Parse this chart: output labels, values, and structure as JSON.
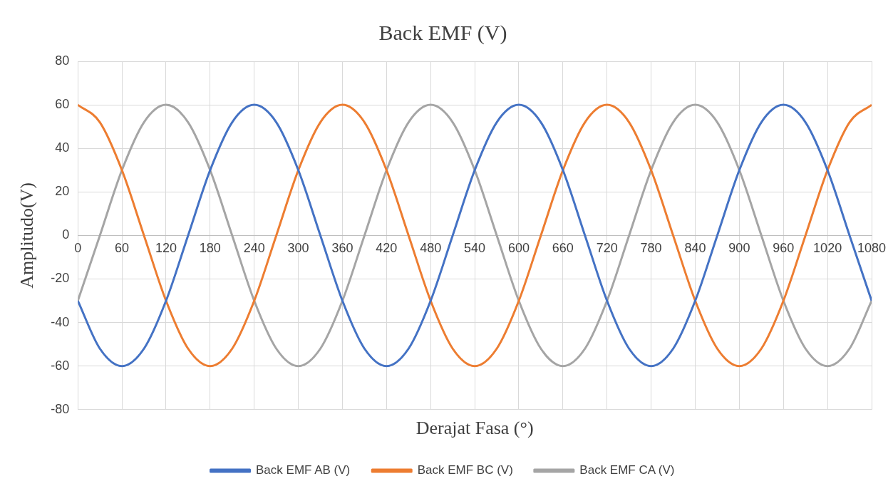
{
  "chart_data": {
    "type": "line",
    "title": "Back EMF (V)",
    "xlabel": "Derajat Fasa (°)",
    "ylabel": "Amplitudo(V)",
    "x": [
      0,
      30,
      60,
      90,
      120,
      150,
      180,
      210,
      240,
      270,
      300,
      330,
      360,
      390,
      420,
      450,
      480,
      510,
      540,
      570,
      600,
      630,
      660,
      690,
      720,
      750,
      780,
      810,
      840,
      870,
      900,
      930,
      960,
      990,
      1020,
      1050,
      1080
    ],
    "series": [
      {
        "name": "Back EMF AB (V)",
        "color": "#4472c4",
        "values": [
          -30,
          -52,
          -60,
          -52,
          -30,
          0,
          30,
          52,
          60,
          52,
          30,
          0,
          -30,
          -52,
          -60,
          -52,
          -30,
          0,
          30,
          52,
          60,
          52,
          30,
          0,
          -30,
          -52,
          -60,
          -52,
          -30,
          0,
          30,
          52,
          60,
          52,
          30,
          0,
          -30
        ]
      },
      {
        "name": "Back EMF BC (V)",
        "color": "#ed7d31",
        "values": [
          60,
          52,
          30,
          0,
          -30,
          -52,
          -60,
          -52,
          -30,
          0,
          30,
          52,
          60,
          52,
          30,
          0,
          -30,
          -52,
          -60,
          -52,
          -30,
          0,
          30,
          52,
          60,
          52,
          30,
          0,
          -30,
          -52,
          -60,
          -52,
          -30,
          0,
          30,
          52,
          60
        ]
      },
      {
        "name": "Back EMF CA (V)",
        "color": "#a5a5a5",
        "values": [
          -30,
          0,
          30,
          52,
          60,
          52,
          30,
          0,
          -30,
          -52,
          -60,
          -52,
          -30,
          0,
          30,
          52,
          60,
          52,
          30,
          0,
          -30,
          -52,
          -60,
          -52,
          -30,
          0,
          30,
          52,
          60,
          52,
          30,
          0,
          -30,
          -52,
          -60,
          -52,
          -30
        ]
      }
    ],
    "xlim": [
      0,
      1080
    ],
    "xticks": [
      0,
      60,
      120,
      180,
      240,
      300,
      360,
      420,
      480,
      540,
      600,
      660,
      720,
      780,
      840,
      900,
      960,
      1020,
      1080
    ],
    "ylim": [
      -80,
      80
    ],
    "yticks": [
      -80,
      -60,
      -40,
      -20,
      0,
      20,
      40,
      60,
      80
    ],
    "grid": true,
    "legend": "bottom",
    "marker": "none",
    "line_style": "solid"
  }
}
